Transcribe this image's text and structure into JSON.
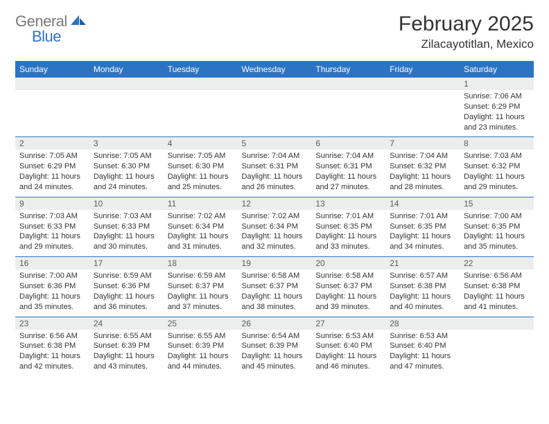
{
  "logo": {
    "text_gray": "General",
    "text_blue": "Blue"
  },
  "title": "February 2025",
  "location": "Zilacayotitlan, Mexico",
  "colors": {
    "header_bg": "#2b74c4",
    "header_text": "#ffffff",
    "daynum_bg": "#eceeee",
    "daynum_text": "#5a5a5a",
    "body_text": "#333333",
    "rule": "#2b74c4",
    "logo_gray": "#7a7a7a",
    "logo_blue": "#2b74c4",
    "page_bg": "#ffffff"
  },
  "typography": {
    "title_fontsize": 30,
    "location_fontsize": 17,
    "header_fontsize": 12,
    "daynum_fontsize": 12,
    "content_fontsize": 11,
    "font_family": "Arial"
  },
  "day_headers": [
    "Sunday",
    "Monday",
    "Tuesday",
    "Wednesday",
    "Thursday",
    "Friday",
    "Saturday"
  ],
  "weeks": [
    [
      {
        "n": "",
        "sr": "",
        "ss": "",
        "dl": ""
      },
      {
        "n": "",
        "sr": "",
        "ss": "",
        "dl": ""
      },
      {
        "n": "",
        "sr": "",
        "ss": "",
        "dl": ""
      },
      {
        "n": "",
        "sr": "",
        "ss": "",
        "dl": ""
      },
      {
        "n": "",
        "sr": "",
        "ss": "",
        "dl": ""
      },
      {
        "n": "",
        "sr": "",
        "ss": "",
        "dl": ""
      },
      {
        "n": "1",
        "sr": "Sunrise: 7:06 AM",
        "ss": "Sunset: 6:29 PM",
        "dl": "Daylight: 11 hours and 23 minutes."
      }
    ],
    [
      {
        "n": "2",
        "sr": "Sunrise: 7:05 AM",
        "ss": "Sunset: 6:29 PM",
        "dl": "Daylight: 11 hours and 24 minutes."
      },
      {
        "n": "3",
        "sr": "Sunrise: 7:05 AM",
        "ss": "Sunset: 6:30 PM",
        "dl": "Daylight: 11 hours and 24 minutes."
      },
      {
        "n": "4",
        "sr": "Sunrise: 7:05 AM",
        "ss": "Sunset: 6:30 PM",
        "dl": "Daylight: 11 hours and 25 minutes."
      },
      {
        "n": "5",
        "sr": "Sunrise: 7:04 AM",
        "ss": "Sunset: 6:31 PM",
        "dl": "Daylight: 11 hours and 26 minutes."
      },
      {
        "n": "6",
        "sr": "Sunrise: 7:04 AM",
        "ss": "Sunset: 6:31 PM",
        "dl": "Daylight: 11 hours and 27 minutes."
      },
      {
        "n": "7",
        "sr": "Sunrise: 7:04 AM",
        "ss": "Sunset: 6:32 PM",
        "dl": "Daylight: 11 hours and 28 minutes."
      },
      {
        "n": "8",
        "sr": "Sunrise: 7:03 AM",
        "ss": "Sunset: 6:32 PM",
        "dl": "Daylight: 11 hours and 29 minutes."
      }
    ],
    [
      {
        "n": "9",
        "sr": "Sunrise: 7:03 AM",
        "ss": "Sunset: 6:33 PM",
        "dl": "Daylight: 11 hours and 29 minutes."
      },
      {
        "n": "10",
        "sr": "Sunrise: 7:03 AM",
        "ss": "Sunset: 6:33 PM",
        "dl": "Daylight: 11 hours and 30 minutes."
      },
      {
        "n": "11",
        "sr": "Sunrise: 7:02 AM",
        "ss": "Sunset: 6:34 PM",
        "dl": "Daylight: 11 hours and 31 minutes."
      },
      {
        "n": "12",
        "sr": "Sunrise: 7:02 AM",
        "ss": "Sunset: 6:34 PM",
        "dl": "Daylight: 11 hours and 32 minutes."
      },
      {
        "n": "13",
        "sr": "Sunrise: 7:01 AM",
        "ss": "Sunset: 6:35 PM",
        "dl": "Daylight: 11 hours and 33 minutes."
      },
      {
        "n": "14",
        "sr": "Sunrise: 7:01 AM",
        "ss": "Sunset: 6:35 PM",
        "dl": "Daylight: 11 hours and 34 minutes."
      },
      {
        "n": "15",
        "sr": "Sunrise: 7:00 AM",
        "ss": "Sunset: 6:35 PM",
        "dl": "Daylight: 11 hours and 35 minutes."
      }
    ],
    [
      {
        "n": "16",
        "sr": "Sunrise: 7:00 AM",
        "ss": "Sunset: 6:36 PM",
        "dl": "Daylight: 11 hours and 35 minutes."
      },
      {
        "n": "17",
        "sr": "Sunrise: 6:59 AM",
        "ss": "Sunset: 6:36 PM",
        "dl": "Daylight: 11 hours and 36 minutes."
      },
      {
        "n": "18",
        "sr": "Sunrise: 6:59 AM",
        "ss": "Sunset: 6:37 PM",
        "dl": "Daylight: 11 hours and 37 minutes."
      },
      {
        "n": "19",
        "sr": "Sunrise: 6:58 AM",
        "ss": "Sunset: 6:37 PM",
        "dl": "Daylight: 11 hours and 38 minutes."
      },
      {
        "n": "20",
        "sr": "Sunrise: 6:58 AM",
        "ss": "Sunset: 6:37 PM",
        "dl": "Daylight: 11 hours and 39 minutes."
      },
      {
        "n": "21",
        "sr": "Sunrise: 6:57 AM",
        "ss": "Sunset: 6:38 PM",
        "dl": "Daylight: 11 hours and 40 minutes."
      },
      {
        "n": "22",
        "sr": "Sunrise: 6:56 AM",
        "ss": "Sunset: 6:38 PM",
        "dl": "Daylight: 11 hours and 41 minutes."
      }
    ],
    [
      {
        "n": "23",
        "sr": "Sunrise: 6:56 AM",
        "ss": "Sunset: 6:38 PM",
        "dl": "Daylight: 11 hours and 42 minutes."
      },
      {
        "n": "24",
        "sr": "Sunrise: 6:55 AM",
        "ss": "Sunset: 6:39 PM",
        "dl": "Daylight: 11 hours and 43 minutes."
      },
      {
        "n": "25",
        "sr": "Sunrise: 6:55 AM",
        "ss": "Sunset: 6:39 PM",
        "dl": "Daylight: 11 hours and 44 minutes."
      },
      {
        "n": "26",
        "sr": "Sunrise: 6:54 AM",
        "ss": "Sunset: 6:39 PM",
        "dl": "Daylight: 11 hours and 45 minutes."
      },
      {
        "n": "27",
        "sr": "Sunrise: 6:53 AM",
        "ss": "Sunset: 6:40 PM",
        "dl": "Daylight: 11 hours and 46 minutes."
      },
      {
        "n": "28",
        "sr": "Sunrise: 6:53 AM",
        "ss": "Sunset: 6:40 PM",
        "dl": "Daylight: 11 hours and 47 minutes."
      },
      {
        "n": "",
        "sr": "",
        "ss": "",
        "dl": ""
      }
    ]
  ]
}
